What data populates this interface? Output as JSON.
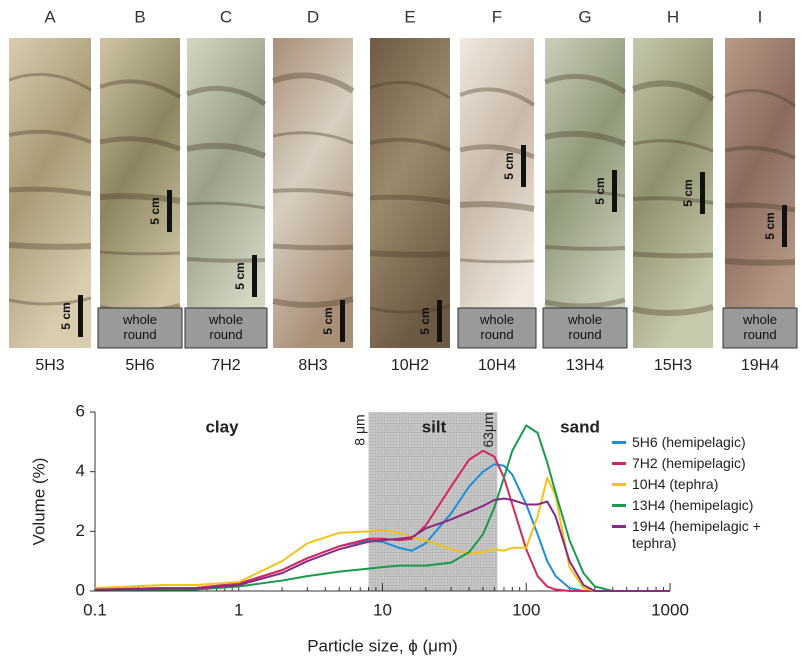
{
  "cores": [
    {
      "letter": "A",
      "sample": "5H3",
      "scale": "5 cm"
    },
    {
      "letter": "B",
      "sample": "5H6",
      "scale": "5 cm",
      "note": "whole round"
    },
    {
      "letter": "C",
      "sample": "7H2",
      "scale": "5 cm",
      "note": "whole round"
    },
    {
      "letter": "D",
      "sample": "8H3",
      "scale": "5 cm"
    },
    {
      "letter": "E",
      "sample": "10H2",
      "scale": "5 cm"
    },
    {
      "letter": "F",
      "sample": "10H4",
      "scale": "5 cm",
      "note": "whole round"
    },
    {
      "letter": "G",
      "sample": "13H4",
      "scale": "5 cm",
      "note": "whole round"
    },
    {
      "letter": "H",
      "sample": "15H3",
      "scale": "5 cm"
    },
    {
      "letter": "I",
      "sample": "19H4",
      "scale": "5 cm",
      "note": "whole round"
    }
  ],
  "chart_data": {
    "type": "line",
    "x_label": "Particle size, ϕ (μm)",
    "y_label": "Volume (%)",
    "x_scale": "log",
    "xlim": [
      0.1,
      1000
    ],
    "xticks": [
      0.1,
      1,
      10,
      100,
      1000
    ],
    "ylim": [
      0,
      6
    ],
    "yticks": [
      0,
      2,
      4,
      6
    ],
    "shade": [
      8,
      63
    ],
    "shade_labels": [
      "8 μm",
      "63μm"
    ],
    "regions": [
      "clay",
      "silt",
      "sand"
    ],
    "x": [
      0.1,
      0.3,
      0.5,
      1,
      2,
      3,
      5,
      8,
      10,
      13,
      16,
      20,
      30,
      40,
      50,
      60,
      70,
      80,
      100,
      120,
      140,
      160,
      200,
      250,
      300,
      400,
      1000
    ],
    "series": [
      {
        "name": "5H6 (hemipelagic)",
        "color": "#1e8fd6",
        "values": [
          0.05,
          0.1,
          0.1,
          0.25,
          0.7,
          1.1,
          1.5,
          1.7,
          1.65,
          1.45,
          1.35,
          1.6,
          2.6,
          3.5,
          4.0,
          4.25,
          4.2,
          3.9,
          2.9,
          1.9,
          1.0,
          0.5,
          0.1,
          0,
          0,
          0,
          0
        ]
      },
      {
        "name": "7H2 (hemipelagic)",
        "color": "#d6265a",
        "values": [
          0.05,
          0.1,
          0.1,
          0.25,
          0.7,
          1.1,
          1.5,
          1.75,
          1.75,
          1.7,
          1.75,
          2.2,
          3.5,
          4.4,
          4.7,
          4.5,
          3.8,
          2.9,
          1.4,
          0.5,
          0.15,
          0.05,
          0,
          0,
          0,
          0,
          0
        ]
      },
      {
        "name": "10H4 (tephra)",
        "color": "#f2c21b",
        "values": [
          0.1,
          0.2,
          0.2,
          0.3,
          1.0,
          1.6,
          1.95,
          2.0,
          2.05,
          1.95,
          1.8,
          1.7,
          1.4,
          1.25,
          1.3,
          1.4,
          1.35,
          1.45,
          1.45,
          2.5,
          3.8,
          3.2,
          0.8,
          0.1,
          0,
          0,
          0
        ]
      },
      {
        "name": "13H4 (hemipelagic)",
        "color": "#1a9a4a",
        "values": [
          0.05,
          0.05,
          0.05,
          0.15,
          0.35,
          0.5,
          0.65,
          0.75,
          0.8,
          0.85,
          0.85,
          0.85,
          0.95,
          1.3,
          1.9,
          2.8,
          3.8,
          4.7,
          5.55,
          5.3,
          4.3,
          3.3,
          1.7,
          0.6,
          0.15,
          0,
          0
        ]
      },
      {
        "name": "19H4 (hemipelagic + tephra)",
        "color": "#8b2a82",
        "values": [
          0.05,
          0.08,
          0.08,
          0.2,
          0.6,
          1.0,
          1.4,
          1.65,
          1.7,
          1.75,
          1.8,
          2.1,
          2.4,
          2.65,
          2.85,
          3.05,
          3.1,
          3.05,
          2.9,
          2.9,
          3.0,
          2.5,
          1.0,
          0.2,
          0,
          0,
          0
        ]
      }
    ]
  }
}
